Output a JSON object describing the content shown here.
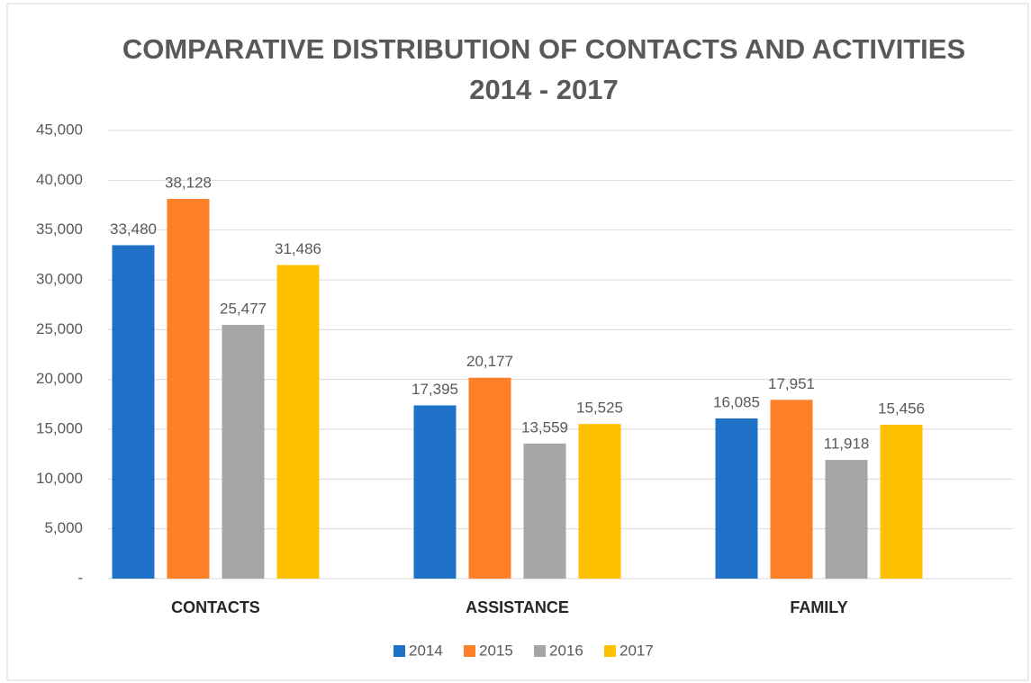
{
  "chart_data": {
    "type": "bar",
    "title": [
      "COMPARATIVE DISTRIBUTION OF CONTACTS AND ACTIVITIES",
      "2014 - 2017"
    ],
    "categories": [
      "CONTACTS",
      "ASSISTANCE",
      "FAMILY"
    ],
    "series": [
      {
        "name": "2014",
        "color": "#1f72c8",
        "values": [
          33480,
          17395,
          16085
        ],
        "value_labels": [
          "33,480",
          "17,395",
          "16,085"
        ]
      },
      {
        "name": "2015",
        "color": "#fd7f28",
        "values": [
          38128,
          20177,
          17951
        ],
        "value_labels": [
          "38,128",
          "20,177",
          "17,951"
        ]
      },
      {
        "name": "2016",
        "color": "#a5a5a5",
        "values": [
          25477,
          13559,
          11918
        ],
        "value_labels": [
          "25,477",
          "13,559",
          "11,918"
        ]
      },
      {
        "name": "2017",
        "color": "#ffc000",
        "values": [
          31486,
          15525,
          15456
        ],
        "value_labels": [
          "31,486",
          "15,525",
          "15,456"
        ]
      }
    ],
    "ylim": [
      0,
      45000
    ],
    "yticks": [
      {
        "value": 0,
        "label": "-"
      },
      {
        "value": 5000,
        "label": "5,000"
      },
      {
        "value": 10000,
        "label": "10,000"
      },
      {
        "value": 15000,
        "label": "15,000"
      },
      {
        "value": 20000,
        "label": "20,000"
      },
      {
        "value": 25000,
        "label": "25,000"
      },
      {
        "value": 30000,
        "label": "30,000"
      },
      {
        "value": 35000,
        "label": "35,000"
      },
      {
        "value": 40000,
        "label": "40,000"
      },
      {
        "value": 45000,
        "label": "45,000"
      }
    ],
    "grid": true,
    "legend": "bottom"
  }
}
